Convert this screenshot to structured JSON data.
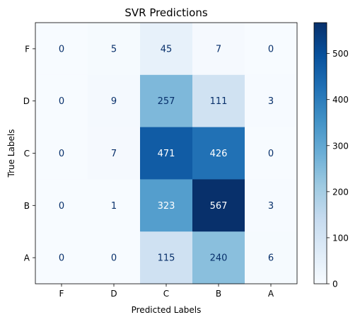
{
  "chart_data": {
    "type": "heatmap",
    "title": "SVR Predictions",
    "xlabel": "Predicted Labels",
    "ylabel": "True Labels",
    "x_categories": [
      "F",
      "D",
      "C",
      "B",
      "A"
    ],
    "y_categories": [
      "F",
      "D",
      "C",
      "B",
      "A"
    ],
    "values": [
      [
        0,
        5,
        45,
        7,
        0
      ],
      [
        0,
        9,
        257,
        111,
        3
      ],
      [
        0,
        7,
        471,
        426,
        0
      ],
      [
        0,
        1,
        323,
        567,
        3
      ],
      [
        0,
        0,
        115,
        240,
        6
      ]
    ],
    "colormap": "Blues",
    "vmin": 0,
    "vmax": 567,
    "colorbar_ticks": [
      0,
      100,
      200,
      300,
      400,
      500
    ],
    "grid": false
  }
}
